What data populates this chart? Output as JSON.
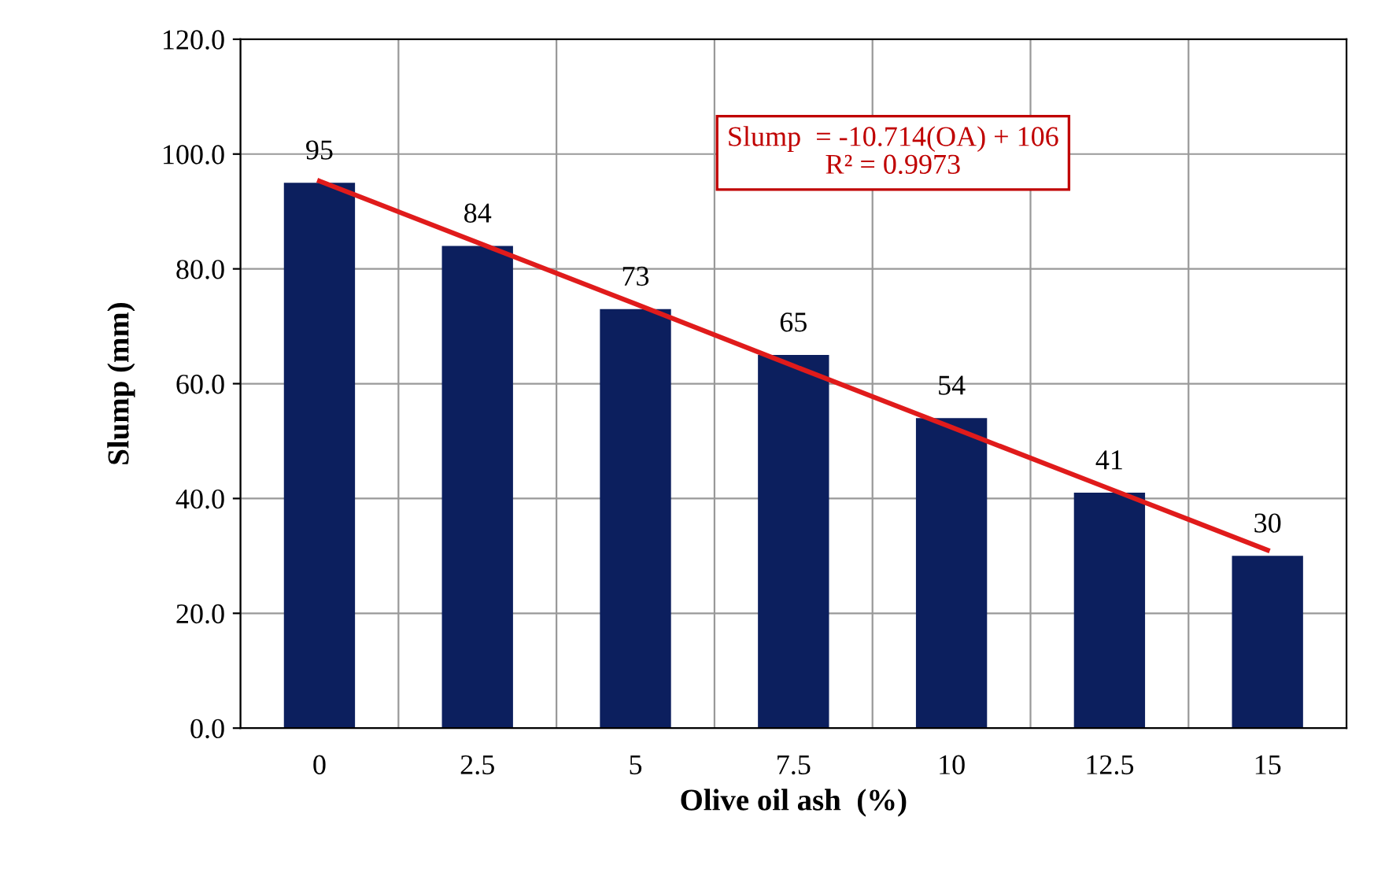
{
  "chart_data": {
    "type": "bar",
    "xlabel": "Olive oil ash  (%)",
    "ylabel": "Slump (mm)",
    "categories": [
      "0",
      "2.5",
      "5",
      "7.5",
      "10",
      "12.5",
      "15"
    ],
    "series": [
      {
        "color": "#0c1f5e",
        "values": [
          95,
          84,
          73,
          65,
          54,
          41,
          30
        ],
        "value_labels": [
          "95",
          "84",
          "73",
          "65",
          "54",
          "41",
          "30"
        ]
      },
      {
        "type": "line",
        "color": "#e01b1b",
        "values": [
          95.3,
          84.6,
          73.9,
          63.1,
          52.4,
          41.7,
          31.0
        ]
      }
    ],
    "ylim": [
      0,
      120
    ],
    "yticks": [
      {
        "value": 0,
        "label": "0.0"
      },
      {
        "value": 20,
        "label": "20.0"
      },
      {
        "value": 40,
        "label": "40.0"
      },
      {
        "value": 60,
        "label": "60.0"
      },
      {
        "value": 80,
        "label": "80.0"
      },
      {
        "value": 100,
        "label": "100.0"
      },
      {
        "value": 120,
        "label": "120.0"
      }
    ],
    "grid": true,
    "annotations": [
      "Slump  = -10.714(OA) + 106\nR² = 0.9973"
    ]
  }
}
